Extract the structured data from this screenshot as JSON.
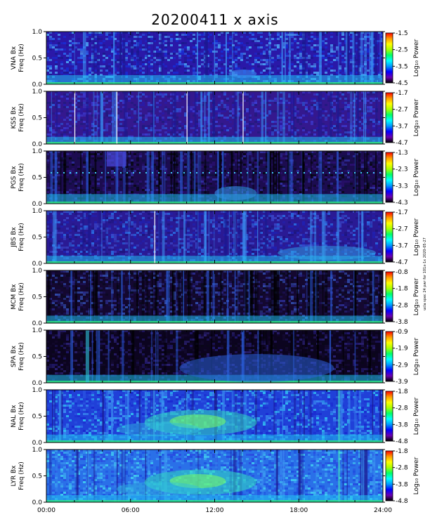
{
  "chart_data": {
    "type": "heatmap",
    "title": "20200411  x  axis",
    "xlabel": "",
    "x_ticks": [
      "00:00",
      "06:00",
      "12:00",
      "18:00",
      "24:00"
    ],
    "xlim_hours": [
      0,
      24
    ],
    "freq_label": "Freq (Hz)",
    "power_label": "Log₁₀ Power",
    "y_ticks": [
      "0.0",
      "0.5",
      "1.0"
    ],
    "ylim": [
      0,
      1.0
    ],
    "colormap": [
      "#000000",
      "#6a00b0",
      "#0000ff",
      "#0099ff",
      "#00ffff",
      "#00ff66",
      "#aaff00",
      "#ffff00",
      "#ff9900",
      "#ff0000"
    ],
    "side_note": "ucla spec 24 pwr for 101x-1x 2020-05-27",
    "panels": [
      {
        "station": "VNA Bx",
        "colorbar_ticks": [
          "-1.5",
          "-2.5",
          "-3.5",
          "-4.5"
        ],
        "vmax": -1.5,
        "vmin": -4.5
      },
      {
        "station": "KSS Bx",
        "colorbar_ticks": [
          "-1.7",
          "-2.7",
          "-3.7",
          "-4.7"
        ],
        "vmax": -1.7,
        "vmin": -4.7
      },
      {
        "station": "PGS Bx",
        "colorbar_ticks": [
          "-1.3",
          "-2.3",
          "-3.3",
          "-4.3"
        ],
        "vmax": -1.3,
        "vmin": -4.3
      },
      {
        "station": "JBS Bx",
        "colorbar_ticks": [
          "-1.7",
          "-2.7",
          "-3.7",
          "-4.7"
        ],
        "vmax": -1.7,
        "vmin": -4.7
      },
      {
        "station": "MCM Bx",
        "colorbar_ticks": [
          "-0.8",
          "-1.8",
          "-2.8",
          "-3.8"
        ],
        "vmax": -0.8,
        "vmin": -3.8
      },
      {
        "station": "SPA Bx",
        "colorbar_ticks": [
          "-0.9",
          "-1.9",
          "-2.9",
          "-3.9"
        ],
        "vmax": -0.9,
        "vmin": -3.9
      },
      {
        "station": "NAL Bx",
        "colorbar_ticks": [
          "-1.8",
          "-2.8",
          "-3.8",
          "-4.8"
        ],
        "vmax": -1.8,
        "vmin": -4.8
      },
      {
        "station": "LYR Bx",
        "colorbar_ticks": [
          "-1.8",
          "-2.8",
          "-3.8",
          "-4.8"
        ],
        "vmax": -1.8,
        "vmin": -4.8
      }
    ]
  }
}
